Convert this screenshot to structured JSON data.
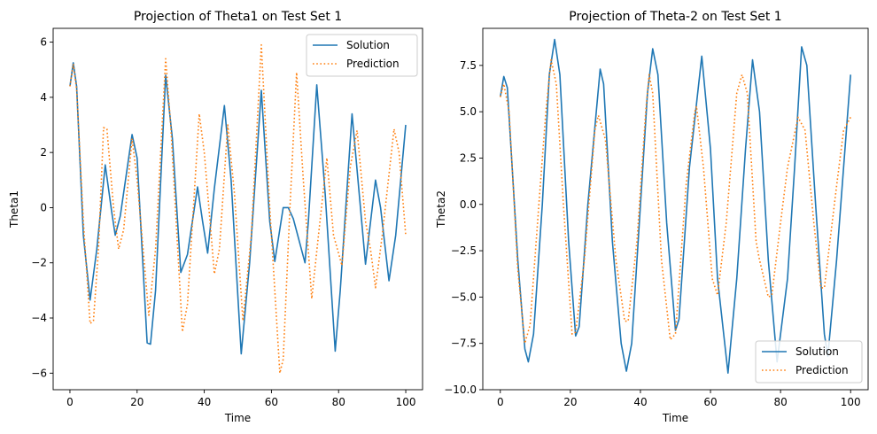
{
  "colors": {
    "solution": "#1f77b4",
    "prediction": "#ff7f0e",
    "frame": "#000000",
    "legend_border": "#cccccc"
  },
  "chart_data": [
    {
      "type": "line",
      "title": "Projection of Theta1 on Test Set 1",
      "xlabel": "Time",
      "ylabel": "Theta1",
      "xlim": [
        -5,
        105
      ],
      "ylim": [
        -6.6,
        6.5
      ],
      "xticks": [
        0,
        20,
        40,
        60,
        80,
        100
      ],
      "yticks": [
        -6,
        -4,
        -2,
        0,
        2,
        4,
        6
      ],
      "grid": false,
      "legend": "top-right",
      "series": [
        {
          "name": "Solution",
          "style": "solid",
          "points": [
            [
              0,
              4.4
            ],
            [
              1,
              5.25
            ],
            [
              2,
              4.4
            ],
            [
              4,
              -1.0
            ],
            [
              6,
              -3.35
            ],
            [
              8,
              -1.5
            ],
            [
              10.5,
              1.55
            ],
            [
              12.5,
              -0.2
            ],
            [
              13.5,
              -1.0
            ],
            [
              15,
              -0.3
            ],
            [
              18.5,
              2.65
            ],
            [
              20,
              1.8
            ],
            [
              23,
              -4.9
            ],
            [
              24,
              -4.95
            ],
            [
              25.5,
              -3.0
            ],
            [
              28.5,
              4.8
            ],
            [
              30.5,
              2.5
            ],
            [
              33,
              -2.35
            ],
            [
              35,
              -1.7
            ],
            [
              38,
              0.75
            ],
            [
              39.5,
              -0.5
            ],
            [
              41,
              -1.65
            ],
            [
              43,
              0.7
            ],
            [
              46,
              3.7
            ],
            [
              48,
              1.0
            ],
            [
              51,
              -5.3
            ],
            [
              53.5,
              -2.0
            ],
            [
              57,
              4.25
            ],
            [
              59.5,
              -0.5
            ],
            [
              61,
              -1.95
            ],
            [
              63.5,
              0.0
            ],
            [
              65,
              0.0
            ],
            [
              66.5,
              -0.4
            ],
            [
              70,
              -2.0
            ],
            [
              71,
              -0.5
            ],
            [
              73.5,
              4.45
            ],
            [
              76,
              0.5
            ],
            [
              79,
              -5.2
            ],
            [
              80.5,
              -3.0
            ],
            [
              84,
              3.4
            ],
            [
              86.5,
              0.0
            ],
            [
              88,
              -2.05
            ],
            [
              91,
              1.0
            ],
            [
              92.5,
              0.0
            ],
            [
              95,
              -2.65
            ],
            [
              97,
              -1.0
            ],
            [
              100,
              3.0
            ]
          ]
        },
        {
          "name": "Prediction",
          "style": "dotted",
          "points": [
            [
              0,
              4.4
            ],
            [
              1,
              5.2
            ],
            [
              2,
              4.3
            ],
            [
              4,
              -0.5
            ],
            [
              6,
              -4.2
            ],
            [
              7,
              -4.1
            ],
            [
              8.5,
              -1.5
            ],
            [
              10,
              2.9
            ],
            [
              11,
              2.85
            ],
            [
              13,
              0.0
            ],
            [
              14.5,
              -1.5
            ],
            [
              16,
              -0.8
            ],
            [
              18.5,
              2.5
            ],
            [
              20,
              1.0
            ],
            [
              23.5,
              -3.9
            ],
            [
              25.5,
              -1.5
            ],
            [
              28.5,
              5.4
            ],
            [
              30,
              3.0
            ],
            [
              33.5,
              -4.5
            ],
            [
              35,
              -3.5
            ],
            [
              38.5,
              3.4
            ],
            [
              40,
              2.0
            ],
            [
              43,
              -2.4
            ],
            [
              44.5,
              -1.5
            ],
            [
              47,
              3.0
            ],
            [
              49,
              0.5
            ],
            [
              51.5,
              -4.1
            ],
            [
              54,
              -1.0
            ],
            [
              57,
              5.9
            ],
            [
              59.5,
              0.0
            ],
            [
              62.5,
              -6.0
            ],
            [
              63.5,
              -5.5
            ],
            [
              65.5,
              0.0
            ],
            [
              67.5,
              4.9
            ],
            [
              69.5,
              1.0
            ],
            [
              72,
              -3.3
            ],
            [
              74,
              -1.0
            ],
            [
              76.5,
              1.8
            ],
            [
              78.5,
              -1.0
            ],
            [
              81,
              -2.1
            ],
            [
              83.5,
              1.5
            ],
            [
              85.5,
              2.8
            ],
            [
              88,
              -0.5
            ],
            [
              89.5,
              -1.5
            ],
            [
              91,
              -2.9
            ],
            [
              93,
              -1.0
            ],
            [
              96.5,
              2.85
            ],
            [
              98,
              2.0
            ],
            [
              100,
              -1.0
            ]
          ]
        }
      ]
    },
    {
      "type": "line",
      "title": "Projection of Theta-2 on Test Set 1",
      "xlabel": "Time",
      "ylabel": "Theta2",
      "xlim": [
        -5,
        105
      ],
      "ylim": [
        -10.0,
        9.5
      ],
      "xticks": [
        0,
        20,
        40,
        60,
        80,
        100
      ],
      "yticks": [
        -10.0,
        -7.5,
        -5.0,
        -2.5,
        0.0,
        2.5,
        5.0,
        7.5
      ],
      "ytick_labels": [
        "−10.0",
        "−7.5",
        "−5.0",
        "−2.5",
        "0.0",
        "2.5",
        "5.0",
        "7.5"
      ],
      "grid": false,
      "legend": "bottom-right",
      "series": [
        {
          "name": "Solution",
          "style": "solid",
          "points": [
            [
              0,
              5.8
            ],
            [
              1,
              6.9
            ],
            [
              2,
              6.3
            ],
            [
              5,
              -3.0
            ],
            [
              7,
              -7.8
            ],
            [
              8,
              -8.5
            ],
            [
              9.5,
              -7.0
            ],
            [
              12,
              0.0
            ],
            [
              14,
              7.0
            ],
            [
              15.5,
              8.9
            ],
            [
              17,
              7.0
            ],
            [
              19.5,
              -2.0
            ],
            [
              21.5,
              -7.1
            ],
            [
              22.5,
              -6.6
            ],
            [
              25,
              0.0
            ],
            [
              28.5,
              7.3
            ],
            [
              29.5,
              6.5
            ],
            [
              32,
              -2.0
            ],
            [
              34.5,
              -7.5
            ],
            [
              36,
              -9.0
            ],
            [
              37.5,
              -7.5
            ],
            [
              40,
              0.0
            ],
            [
              42,
              6.0
            ],
            [
              43.5,
              8.4
            ],
            [
              45,
              7.0
            ],
            [
              47.5,
              -1.0
            ],
            [
              50,
              -6.8
            ],
            [
              51,
              -6.2
            ],
            [
              54,
              2.0
            ],
            [
              57.5,
              8.0
            ],
            [
              60,
              3.0
            ],
            [
              62,
              -4.0
            ],
            [
              65,
              -9.1
            ],
            [
              67.5,
              -4.0
            ],
            [
              70,
              3.0
            ],
            [
              72,
              7.8
            ],
            [
              74,
              5.0
            ],
            [
              76.5,
              -3.0
            ],
            [
              79,
              -8.5
            ],
            [
              82,
              -4.0
            ],
            [
              84,
              2.0
            ],
            [
              86,
              8.5
            ],
            [
              87.5,
              7.5
            ],
            [
              90,
              0.0
            ],
            [
              92.5,
              -7.0
            ],
            [
              93.5,
              -8.2
            ],
            [
              96,
              -3.0
            ],
            [
              98,
              2.0
            ],
            [
              100,
              7.0
            ]
          ]
        },
        {
          "name": "Prediction",
          "style": "dotted",
          "points": [
            [
              0,
              5.8
            ],
            [
              1,
              6.5
            ],
            [
              2.5,
              5.0
            ],
            [
              5,
              -3.5
            ],
            [
              7,
              -7.5
            ],
            [
              8.5,
              -6.5
            ],
            [
              11,
              0.0
            ],
            [
              13,
              5.0
            ],
            [
              14.5,
              7.8
            ],
            [
              16,
              6.5
            ],
            [
              18,
              0.0
            ],
            [
              20.5,
              -7.0
            ],
            [
              21.5,
              -6.9
            ],
            [
              24,
              -3.0
            ],
            [
              27,
              4.0
            ],
            [
              28,
              4.8
            ],
            [
              30,
              3.5
            ],
            [
              33,
              -3.0
            ],
            [
              35.5,
              -6.3
            ],
            [
              36.5,
              -6.3
            ],
            [
              39,
              -2.0
            ],
            [
              41.5,
              5.0
            ],
            [
              42.5,
              7.0
            ],
            [
              43.5,
              6.0
            ],
            [
              46,
              -3.0
            ],
            [
              48.5,
              -7.3
            ],
            [
              50,
              -7.0
            ],
            [
              53,
              1.0
            ],
            [
              55.5,
              5.0
            ],
            [
              56,
              5.3
            ],
            [
              58,
              2.0
            ],
            [
              60.5,
              -4.0
            ],
            [
              62,
              -4.9
            ],
            [
              64.5,
              -1.0
            ],
            [
              67.5,
              6.0
            ],
            [
              69,
              7.0
            ],
            [
              70.5,
              6.0
            ],
            [
              73,
              -2.0
            ],
            [
              74,
              -3.0
            ],
            [
              76.5,
              -5.0
            ],
            [
              77.5,
              -4.9
            ],
            [
              80,
              -1.0
            ],
            [
              82,
              2.0
            ],
            [
              85,
              4.7
            ],
            [
              87,
              4.0
            ],
            [
              89.5,
              -1.0
            ],
            [
              91.5,
              -4.5
            ],
            [
              92.5,
              -4.5
            ],
            [
              96,
              1.0
            ],
            [
              98,
              4.0
            ],
            [
              100,
              4.7
            ]
          ]
        }
      ]
    }
  ]
}
